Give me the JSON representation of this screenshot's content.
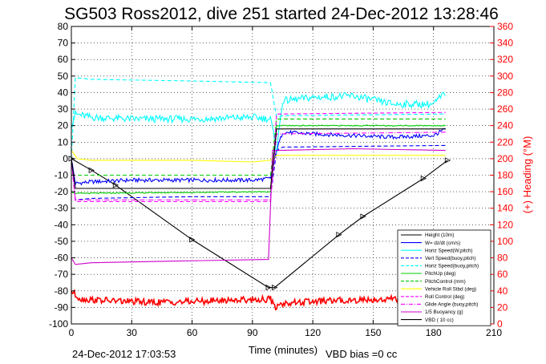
{
  "chart_data": {
    "type": "line",
    "title": "SG503 Ross2012, dive 251 started 24-Dec-2012 13:28:46",
    "xlabel": "Time (minutes)",
    "ylabel_right": "(+) Heading (°M)",
    "xlim": [
      0,
      210
    ],
    "ylim": [
      -100,
      80
    ],
    "y2lim": [
      0,
      360
    ],
    "xticks": [
      0,
      30,
      60,
      90,
      120,
      150,
      180,
      210
    ],
    "yticks": [
      -100,
      -90,
      -80,
      -70,
      -60,
      -50,
      -40,
      -30,
      -20,
      -10,
      0,
      10,
      20,
      30,
      40,
      50,
      60,
      70,
      80
    ],
    "y2ticks": [
      0,
      20,
      40,
      60,
      80,
      100,
      120,
      140,
      160,
      180,
      200,
      220,
      240,
      260,
      280,
      300,
      320,
      340,
      360
    ],
    "grid": true,
    "legend_position": "bottom-right",
    "footer_left": "24-Dec-2012 17:03:53",
    "footer_right": "VBD bias =0 cc",
    "series": [
      {
        "name": "Height (10m)",
        "color": "#000000",
        "style": "solid-markers",
        "x": [
          0,
          10,
          22,
          60,
          98,
          101,
          133,
          145,
          175,
          187
        ],
        "values": [
          0,
          -7,
          -16,
          -49,
          -78,
          -78,
          -46,
          -35,
          -12,
          -1
        ]
      },
      {
        "name": "W= dz/dt (cm/s)",
        "color": "#0000ff",
        "style": "solid",
        "x": [
          0,
          2,
          10,
          30,
          60,
          90,
          99,
          102,
          105,
          120,
          140,
          160,
          180,
          186
        ],
        "values": [
          0,
          -15,
          -14,
          -13,
          -13,
          -13,
          -12,
          5,
          16,
          15,
          14,
          13,
          14,
          18
        ]
      },
      {
        "name": "Horiz Speed(W,pitch)",
        "color": "#00ffff",
        "style": "solid",
        "x": [
          0,
          2,
          10,
          30,
          60,
          90,
          99,
          102,
          105,
          120,
          140,
          160,
          180,
          186
        ],
        "values": [
          20,
          27,
          25,
          24,
          24,
          25,
          24,
          5,
          35,
          37,
          38,
          33,
          33,
          40
        ]
      },
      {
        "name": "Vert Speed(buoy,pitch)",
        "color": "#0000ff",
        "style": "dashed",
        "x": [
          0,
          2,
          10,
          60,
          99,
          102,
          105,
          186
        ],
        "values": [
          0,
          -25,
          -24,
          -23,
          -23,
          5,
          7,
          8
        ]
      },
      {
        "name": "Horiz Speed(buoy,pitch)",
        "color": "#00ffff",
        "style": "dashed",
        "x": [
          0,
          2,
          10,
          60,
          99,
          102,
          105,
          186
        ],
        "values": [
          0,
          49,
          48,
          47,
          46,
          25,
          26,
          27
        ]
      },
      {
        "name": "PitchUp (deg)",
        "color": "#00cc00",
        "style": "solid",
        "x": [
          0,
          2,
          99,
          102,
          186
        ],
        "values": [
          -20,
          -21,
          -20,
          20,
          20
        ]
      },
      {
        "name": "PitchControl (mm)",
        "color": "#00cc00",
        "style": "dashed",
        "x": [
          0,
          2,
          99,
          102,
          186
        ],
        "values": [
          -10,
          -10,
          -10,
          24,
          24
        ]
      },
      {
        "name": "Vehicle Roll Stbd (deg)",
        "color": "#ffff00",
        "style": "solid",
        "x": [
          0,
          3,
          10,
          30,
          60,
          90,
          99,
          102,
          120,
          160,
          186
        ],
        "values": [
          5,
          0,
          -1,
          -1,
          -1,
          -2,
          -1,
          2,
          2,
          2,
          2
        ]
      },
      {
        "name": "Roll Control (deg)",
        "color": "#ff00ff",
        "style": "dashed",
        "x": [
          0,
          2,
          99,
          102,
          186
        ],
        "values": [
          0,
          -26,
          -26,
          27,
          28
        ]
      },
      {
        "name": "Glide Angle (buoy,pitch)",
        "color": "#ff00ff",
        "style": "dashdot",
        "x": [
          0,
          2,
          99,
          102,
          186
        ],
        "values": [
          0,
          -25,
          -25,
          15,
          16
        ]
      },
      {
        "name": "1/5 Buoyancy (g)",
        "color": "#cc00cc",
        "style": "solid",
        "x": [
          0,
          2,
          10,
          50,
          98,
          100,
          103,
          140,
          186
        ],
        "values": [
          -60,
          -64,
          -63,
          -62,
          -61,
          5,
          5,
          6,
          5
        ]
      },
      {
        "name": "VBD ( 10 cc)",
        "color": "#000000",
        "style": "solid",
        "x": [
          0,
          2,
          99,
          102,
          186
        ],
        "values": [
          0,
          -18,
          -18,
          18,
          18
        ]
      },
      {
        "name": "Heading",
        "color": "#ff0000",
        "style": "noisy",
        "axis": "right",
        "x": [
          0,
          2,
          5,
          20,
          40,
          60,
          80,
          99,
          101,
          105,
          120,
          140,
          160,
          175,
          186
        ],
        "values": [
          40,
          35,
          30,
          28,
          26,
          27,
          29,
          30,
          20,
          25,
          27,
          29,
          30,
          31,
          30
        ]
      }
    ]
  }
}
